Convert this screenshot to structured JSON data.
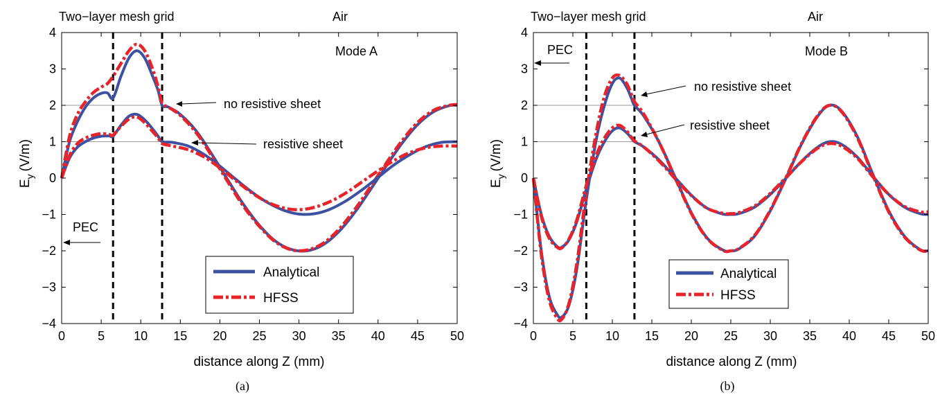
{
  "chart_data": [
    {
      "type": "line",
      "caption": "(a)",
      "xlabel": "distance along Z (mm)",
      "ylabel_main": "E",
      "ylabel_sub": "y",
      "ylabel_unit": "(V/m)",
      "xlim": [
        0,
        50
      ],
      "ylim": [
        -4,
        4
      ],
      "xticks": [
        0,
        5,
        10,
        15,
        20,
        25,
        30,
        35,
        40,
        45,
        50
      ],
      "yticks": [
        -4,
        -3,
        -2,
        -1,
        0,
        1,
        2,
        3,
        4
      ],
      "legend_position": "lower-center",
      "legend": [
        "Analytical",
        "HFSS"
      ],
      "dashed_lines_x": [
        6.5,
        12.7
      ],
      "ref_lines": [
        {
          "y": 2,
          "x": [
            0,
            12.7
          ]
        },
        {
          "y": 1,
          "x": [
            0,
            12.7
          ]
        }
      ],
      "texts": {
        "region_left": "Two−layer mesh grid",
        "region_right": "Air",
        "mode": "Mode A",
        "upper_curve": "no resistive sheet",
        "lower_curve": "resistive sheet",
        "pec": "PEC"
      },
      "series": [
        {
          "name": "Analytical",
          "group": "no resistive sheet",
          "x": [
            0,
            1,
            2,
            3,
            4,
            5,
            5.8,
            6.5,
            7.5,
            8.5,
            9.5,
            10.5,
            11.5,
            12.2,
            12.7,
            13.5,
            15,
            17,
            19,
            21,
            23,
            25,
            27,
            29,
            31,
            33,
            35,
            37,
            39,
            41,
            43,
            45,
            47,
            49,
            50
          ],
          "y": [
            0,
            1.0,
            1.55,
            1.95,
            2.2,
            2.33,
            2.34,
            2.2,
            2.8,
            3.3,
            3.5,
            3.3,
            2.8,
            2.4,
            2.0,
            1.95,
            1.75,
            1.3,
            0.65,
            -0.05,
            -0.73,
            -1.3,
            -1.73,
            -1.96,
            -2.0,
            -1.84,
            -1.48,
            -0.96,
            -0.33,
            0.32,
            0.95,
            1.47,
            1.82,
            1.99,
            2.0
          ]
        },
        {
          "name": "HFSS",
          "group": "no resistive sheet",
          "x": [
            0,
            1,
            2,
            3,
            4,
            5,
            5.8,
            6.5,
            7.5,
            8.5,
            9.5,
            10.5,
            11.5,
            12.2,
            12.7,
            13.5,
            15,
            17,
            19,
            21,
            23,
            25,
            27,
            29,
            31,
            33,
            35,
            37,
            39,
            41,
            43,
            45,
            47,
            49,
            50
          ],
          "y": [
            0,
            1.15,
            1.75,
            2.1,
            2.35,
            2.5,
            2.6,
            2.8,
            3.15,
            3.5,
            3.68,
            3.5,
            3.0,
            2.5,
            2.05,
            1.95,
            1.72,
            1.25,
            0.6,
            -0.1,
            -0.78,
            -1.33,
            -1.75,
            -1.97,
            -1.98,
            -1.8,
            -1.42,
            -0.88,
            -0.25,
            0.4,
            1.02,
            1.53,
            1.86,
            2.0,
            2.02
          ]
        },
        {
          "name": "Analytical",
          "group": "resistive sheet",
          "x": [
            0,
            1,
            2,
            3,
            4,
            5,
            6,
            6.5,
            7.5,
            8.5,
            9.5,
            10.5,
            11.5,
            12.2,
            12.7,
            14,
            16,
            18,
            20,
            22,
            24,
            26,
            28,
            30,
            32,
            34,
            36,
            38,
            40,
            42,
            44,
            46,
            48,
            50
          ],
          "y": [
            0,
            0.55,
            0.85,
            1.0,
            1.1,
            1.15,
            1.16,
            1.15,
            1.45,
            1.7,
            1.75,
            1.6,
            1.35,
            1.15,
            1.0,
            0.98,
            0.88,
            0.65,
            0.33,
            -0.03,
            -0.38,
            -0.67,
            -0.88,
            -0.99,
            -0.98,
            -0.85,
            -0.62,
            -0.32,
            0.02,
            0.36,
            0.64,
            0.86,
            0.98,
            1.0
          ]
        },
        {
          "name": "HFSS",
          "group": "resistive sheet",
          "x": [
            0,
            1,
            2,
            3,
            4,
            5,
            6,
            6.5,
            7.5,
            8.5,
            9.5,
            10.5,
            11.5,
            12.2,
            12.7,
            14,
            16,
            18,
            20,
            22,
            24,
            26,
            28,
            30,
            32,
            34,
            36,
            38,
            40,
            42,
            44,
            46,
            48,
            50
          ],
          "y": [
            0,
            0.62,
            0.95,
            1.1,
            1.18,
            1.22,
            1.2,
            1.18,
            1.42,
            1.62,
            1.68,
            1.52,
            1.28,
            1.1,
            0.95,
            0.88,
            0.78,
            0.58,
            0.28,
            -0.07,
            -0.4,
            -0.66,
            -0.82,
            -0.87,
            -0.8,
            -0.64,
            -0.4,
            -0.1,
            0.2,
            0.48,
            0.7,
            0.83,
            0.88,
            0.88
          ]
        }
      ]
    },
    {
      "type": "line",
      "caption": "(b)",
      "xlabel": "distance along Z (mm)",
      "ylabel_main": "E",
      "ylabel_sub": "y",
      "ylabel_unit": "(V/m)",
      "xlim": [
        0,
        50
      ],
      "ylim": [
        -4,
        4
      ],
      "xticks": [
        0,
        5,
        10,
        15,
        20,
        25,
        30,
        35,
        40,
        45,
        50
      ],
      "yticks": [
        -4,
        -3,
        -2,
        -1,
        0,
        1,
        2,
        3,
        4
      ],
      "legend_position": "lower-center",
      "legend": [
        "Analytical",
        "HFSS"
      ],
      "dashed_lines_x": [
        6.7,
        12.8
      ],
      "ref_lines": [
        {
          "y": 2,
          "x": [
            0,
            12.8
          ]
        },
        {
          "y": 1,
          "x": [
            0,
            12.8
          ]
        }
      ],
      "texts": {
        "region_left": "Two−layer mesh grid",
        "region_right": "Air",
        "mode": "Mode B",
        "upper_curve": "no resistive sheet",
        "lower_curve": "resistive sheet",
        "pec": "PEC"
      },
      "series": [
        {
          "name": "Analytical",
          "group": "no resistive sheet",
          "x": [
            0,
            1,
            2,
            3,
            3.6,
            4.5,
            5.5,
            6.7,
            8,
            9,
            10,
            10.9,
            11.8,
            12.4,
            12.8,
            14,
            16,
            18,
            20,
            22,
            24,
            25,
            26,
            28,
            30,
            32,
            34,
            36,
            37.5,
            39,
            41,
            43,
            45,
            47,
            49,
            50
          ],
          "y": [
            0,
            -2.0,
            -3.25,
            -3.75,
            -3.82,
            -3.5,
            -2.5,
            -0.6,
            1.1,
            2.0,
            2.6,
            2.75,
            2.5,
            2.2,
            2.0,
            1.7,
            0.95,
            0.0,
            -0.95,
            -1.65,
            -1.98,
            -2.0,
            -1.95,
            -1.6,
            -0.9,
            0.0,
            0.95,
            1.7,
            2.0,
            1.85,
            1.15,
            0.1,
            -0.9,
            -1.6,
            -1.97,
            -2.0
          ]
        },
        {
          "name": "HFSS",
          "group": "no resistive sheet",
          "x": [
            0,
            1,
            2,
            3,
            3.6,
            4.5,
            5.5,
            6.7,
            8,
            9,
            10,
            10.9,
            11.8,
            12.4,
            12.8,
            14,
            16,
            18,
            20,
            22,
            24,
            25,
            26,
            28,
            30,
            32,
            34,
            36,
            37.5,
            39,
            41,
            43,
            45,
            47,
            49,
            50
          ],
          "y": [
            0,
            -2.1,
            -3.35,
            -3.85,
            -3.88,
            -3.45,
            -2.35,
            -0.4,
            1.3,
            2.25,
            2.75,
            2.82,
            2.6,
            2.3,
            2.1,
            1.75,
            0.95,
            -0.02,
            -0.97,
            -1.66,
            -1.99,
            -2.0,
            -1.94,
            -1.58,
            -0.88,
            0.02,
            0.97,
            1.72,
            2.0,
            1.83,
            1.12,
            0.07,
            -0.93,
            -1.62,
            -1.98,
            -2.0
          ]
        },
        {
          "name": "Analytical",
          "group": "resistive sheet",
          "x": [
            0,
            1,
            2,
            3,
            3.6,
            4.5,
            5.5,
            6.7,
            8,
            9,
            10,
            10.9,
            11.8,
            12.4,
            12.8,
            14,
            16,
            18,
            20,
            22,
            24,
            25,
            26,
            28,
            30,
            32,
            34,
            36,
            37.5,
            39,
            41,
            43,
            45,
            47,
            49,
            50
          ],
          "y": [
            0,
            -1.0,
            -1.6,
            -1.88,
            -1.9,
            -1.7,
            -1.2,
            -0.3,
            0.55,
            1.0,
            1.3,
            1.38,
            1.25,
            1.1,
            1.0,
            0.85,
            0.48,
            0.0,
            -0.47,
            -0.83,
            -0.99,
            -1.0,
            -0.98,
            -0.8,
            -0.45,
            0.0,
            0.47,
            0.85,
            1.0,
            0.93,
            0.58,
            0.05,
            -0.45,
            -0.8,
            -0.98,
            -1.0
          ]
        },
        {
          "name": "HFSS",
          "group": "resistive sheet",
          "x": [
            0,
            1,
            2,
            3,
            3.6,
            4.5,
            5.5,
            6.7,
            8,
            9,
            10,
            10.9,
            11.8,
            12.4,
            12.8,
            14,
            16,
            18,
            20,
            22,
            24,
            25,
            26,
            28,
            30,
            32,
            34,
            36,
            37.5,
            39,
            41,
            43,
            45,
            47,
            49,
            50
          ],
          "y": [
            0,
            -1.05,
            -1.65,
            -1.9,
            -1.92,
            -1.68,
            -1.15,
            -0.2,
            0.65,
            1.1,
            1.38,
            1.45,
            1.3,
            1.12,
            1.02,
            0.85,
            0.45,
            -0.03,
            -0.48,
            -0.83,
            -0.97,
            -0.98,
            -0.95,
            -0.77,
            -0.42,
            0.02,
            0.46,
            0.82,
            0.95,
            0.88,
            0.55,
            0.03,
            -0.45,
            -0.78,
            -0.93,
            -0.93
          ]
        }
      ]
    }
  ]
}
